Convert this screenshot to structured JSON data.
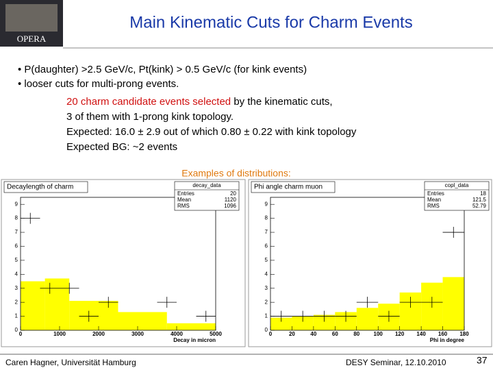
{
  "header": {
    "title": "Main Kinematic  Cuts for Charm Events",
    "logo": "OPERA"
  },
  "bullets": [
    "• P(daughter) >2.5 GeV/c, Pt(kink) > 0.5 GeV/c (for kink events)",
    "• looser cuts for multi-prong events."
  ],
  "results": {
    "highlight": "20 charm candidate events selected",
    "rest": " by the kinematic cuts,",
    "lines": [
      "3 of them with 1-prong kink topology.",
      "Expected: 16.0 ± 2.9 out of which 0.80 ± 0.22 with kink topology",
      "Expected BG: ~2 events"
    ]
  },
  "examples": "Examples of distributions:",
  "chart_data": [
    {
      "type": "histogram",
      "title": "Decaylength of charm",
      "xlabel": "Decay in micron",
      "stats": {
        "title": "decay_data",
        "rows": [
          [
            "Entries",
            20
          ],
          [
            "Mean",
            1120
          ],
          [
            "RMS",
            1096
          ]
        ]
      },
      "xlim": [
        0,
        5000
      ],
      "xticks": [
        0,
        1000,
        2000,
        3000,
        4000,
        5000
      ],
      "ylim": [
        0,
        9.5
      ],
      "yticks": [
        0,
        1,
        2,
        3,
        4,
        5,
        6,
        7,
        8,
        9
      ],
      "series": [
        {
          "style": "filled",
          "color": "#ffff00",
          "bins": [
            0,
            625,
            1250,
            2500,
            3750,
            5000
          ],
          "values": [
            3.5,
            3.7,
            2.1,
            1.3,
            0.5
          ]
        },
        {
          "style": "points",
          "color": "#000000",
          "bins": [
            0,
            500,
            1000,
            1500,
            2000,
            2500,
            3000,
            3500,
            4000,
            4500,
            5000
          ],
          "values": [
            8,
            3,
            3,
            1,
            2,
            0,
            0,
            2,
            0,
            1
          ]
        }
      ]
    },
    {
      "type": "histogram",
      "title": "Phi angle charm muon",
      "xlabel": "Phi in degree",
      "stats": {
        "title": "copl_data",
        "rows": [
          [
            "Entries",
            18
          ],
          [
            "Mean",
            121.5
          ],
          [
            "RMS",
            52.79
          ]
        ]
      },
      "xlim": [
        0,
        180
      ],
      "xticks": [
        0,
        20,
        40,
        60,
        80,
        100,
        120,
        140,
        160,
        180
      ],
      "ylim": [
        0,
        9.5
      ],
      "yticks": [
        0,
        1,
        2,
        3,
        4,
        5,
        6,
        7,
        8,
        9
      ],
      "series": [
        {
          "style": "filled",
          "color": "#ffff00",
          "bins": [
            0,
            20,
            40,
            60,
            80,
            100,
            120,
            140,
            160,
            180
          ],
          "values": [
            0.9,
            1,
            1.1,
            1.3,
            1.6,
            1.9,
            2.7,
            3.4,
            3.8
          ]
        },
        {
          "style": "points",
          "color": "#000000",
          "bins": [
            0,
            20,
            40,
            60,
            80,
            100,
            120,
            140,
            160,
            180
          ],
          "values": [
            1,
            1,
            1,
            1,
            2,
            1,
            2,
            2,
            7
          ]
        }
      ]
    }
  ],
  "footer": {
    "author": "Caren Hagner, Universität Hamburg",
    "event": "DESY Seminar, 12.10.2010",
    "page": "37"
  }
}
